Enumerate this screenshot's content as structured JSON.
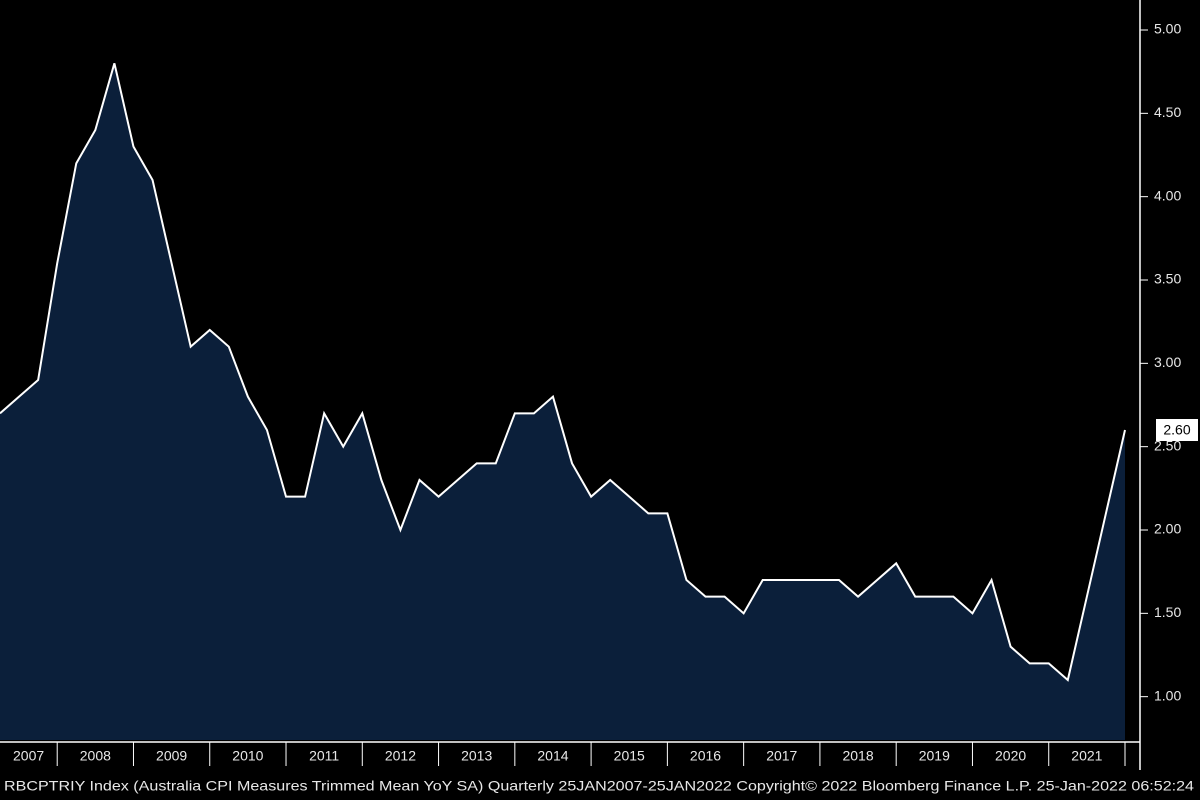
{
  "chart_data": {
    "type": "area",
    "footer": "RBCPTRIY Index (Australia CPI Measures Trimmed Mean YoY SA)  Quarterly 25JAN2007-25JAN2022 Copyright© 2022 Bloomberg Finance L.P. 25-Jan-2022 06:52:24",
    "x": [
      2007.25,
      2007.5,
      2007.75,
      2008.0,
      2008.25,
      2008.5,
      2008.75,
      2009.0,
      2009.25,
      2009.5,
      2009.75,
      2010.0,
      2010.25,
      2010.5,
      2010.75,
      2011.0,
      2011.25,
      2011.5,
      2011.75,
      2012.0,
      2012.25,
      2012.5,
      2012.75,
      2013.0,
      2013.25,
      2013.5,
      2013.75,
      2014.0,
      2014.25,
      2014.5,
      2014.75,
      2015.0,
      2015.25,
      2015.5,
      2015.75,
      2016.0,
      2016.25,
      2016.5,
      2016.75,
      2017.0,
      2017.25,
      2017.5,
      2017.75,
      2018.0,
      2018.25,
      2018.5,
      2018.75,
      2019.0,
      2019.25,
      2019.5,
      2019.75,
      2020.0,
      2020.25,
      2020.5,
      2020.75,
      2021.0,
      2021.25,
      2021.5,
      2021.75,
      2022.0
    ],
    "series": [
      {
        "color": "#ffffff",
        "fill": "#0b1f3a",
        "values": [
          2.7,
          2.8,
          2.9,
          3.6,
          4.2,
          4.4,
          4.8,
          4.3,
          4.1,
          3.6,
          3.1,
          3.2,
          3.1,
          2.8,
          2.6,
          2.2,
          2.2,
          2.7,
          2.5,
          2.7,
          2.3,
          2.0,
          2.3,
          2.2,
          2.3,
          2.4,
          2.4,
          2.7,
          2.7,
          2.8,
          2.4,
          2.2,
          2.3,
          2.2,
          2.1,
          2.1,
          1.7,
          1.6,
          1.6,
          1.5,
          1.7,
          1.7,
          1.7,
          1.7,
          1.7,
          1.6,
          1.7,
          1.8,
          1.6,
          1.6,
          1.6,
          1.5,
          1.7,
          1.3,
          1.2,
          1.2,
          1.1,
          1.6,
          2.1,
          2.6
        ],
        "value_labels": [
          null,
          null,
          null,
          null,
          null,
          null,
          null,
          null,
          null,
          null,
          null,
          null,
          null,
          null,
          null,
          null,
          null,
          null,
          null,
          null,
          null,
          null,
          null,
          null,
          null,
          null,
          null,
          null,
          null,
          null,
          null,
          null,
          null,
          null,
          null,
          null,
          null,
          null,
          null,
          null,
          null,
          null,
          null,
          null,
          null,
          null,
          null,
          null,
          null,
          null,
          null,
          null,
          null,
          null,
          null,
          null,
          null,
          null,
          null,
          "2.60"
        ]
      }
    ],
    "xlim": [
      2007.25,
      2022.0
    ],
    "xticks": [
      {
        "value": 2007,
        "label": "2007"
      },
      {
        "value": 2008,
        "label": "2008"
      },
      {
        "value": 2009,
        "label": "2009"
      },
      {
        "value": 2010,
        "label": "2010"
      },
      {
        "value": 2011,
        "label": "2011"
      },
      {
        "value": 2012,
        "label": "2012"
      },
      {
        "value": 2013,
        "label": "2013"
      },
      {
        "value": 2014,
        "label": "2014"
      },
      {
        "value": 2015,
        "label": "2015"
      },
      {
        "value": 2016,
        "label": "2016"
      },
      {
        "value": 2017,
        "label": "2017"
      },
      {
        "value": 2018,
        "label": "2018"
      },
      {
        "value": 2019,
        "label": "2019"
      },
      {
        "value": 2020,
        "label": "2020"
      },
      {
        "value": 2021,
        "label": "2021"
      }
    ],
    "ylim": [
      0.74,
      5.18
    ],
    "yticks": [
      {
        "value": 1,
        "label": "1.00"
      },
      {
        "value": 1.5,
        "label": "1.50"
      },
      {
        "value": 2,
        "label": "2.00"
      },
      {
        "value": 2.5,
        "label": "2.50"
      },
      {
        "value": 3,
        "label": "3.00"
      },
      {
        "value": 3.5,
        "label": "3.50"
      },
      {
        "value": 4,
        "label": "4.00"
      },
      {
        "value": 4.5,
        "label": "4.50"
      },
      {
        "value": 5,
        "label": "5.00"
      }
    ]
  }
}
